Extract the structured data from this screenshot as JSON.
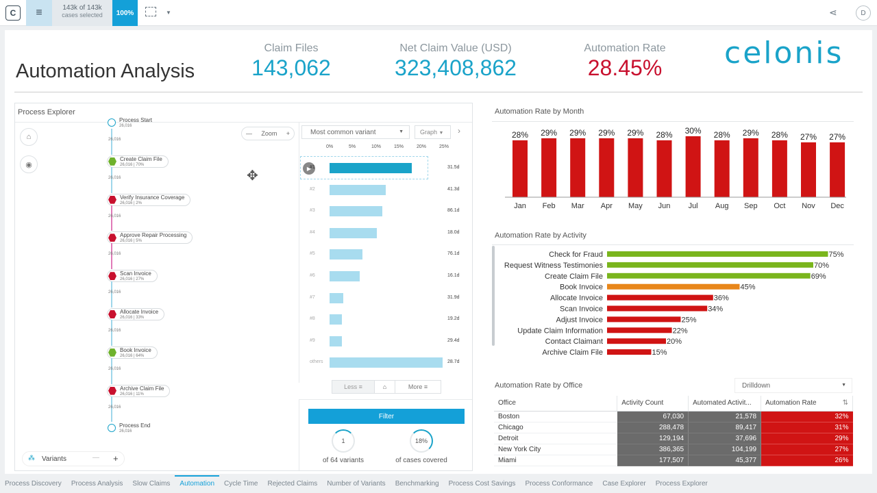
{
  "topbar": {
    "cases_count": "143k of 143k",
    "cases_label": "cases selected",
    "percent": "100%",
    "logo_letter": "C",
    "user_initial": "D"
  },
  "page_title": "Automation Analysis",
  "kpis": {
    "claim_files": {
      "label": "Claim Files",
      "value": "143,062",
      "color": "#1aa3c9"
    },
    "net_value": {
      "label": "Net Claim Value (USD)",
      "value": "323,408,862",
      "color": "#1aa3c9"
    },
    "auto_rate": {
      "label": "Automation Rate",
      "value": "28.45%",
      "color": "#c8102e"
    }
  },
  "brand": "celonis",
  "process_explorer": {
    "title": "Process Explorer",
    "zoom_label": "Zoom",
    "nodes": [
      {
        "name": "Process Start",
        "stats": "26,016",
        "type": "start"
      },
      {
        "name": "Create Claim File",
        "stats": "26,016 | 70%",
        "type": "green"
      },
      {
        "name": "Verify Insurance Coverage",
        "stats": "26,016 | 2%",
        "type": "red"
      },
      {
        "name": "Approve Repair Processing",
        "stats": "26,016 | 5%",
        "type": "red"
      },
      {
        "name": "Scan Invoice",
        "stats": "26,016 | 27%",
        "type": "red"
      },
      {
        "name": "Allocate Invoice",
        "stats": "26,016 | 33%",
        "type": "red"
      },
      {
        "name": "Book Invoice",
        "stats": "26,016 | 64%",
        "type": "green"
      },
      {
        "name": "Archive Claim File",
        "stats": "26,016 | 11%",
        "type": "red"
      },
      {
        "name": "Process End",
        "stats": "26,016",
        "type": "end"
      }
    ],
    "edge_counts": [
      "26,016",
      "26,016",
      "26,016",
      "26,016",
      "26,016",
      "26,016",
      "26,016",
      "26,016"
    ],
    "variants_label": "Variants",
    "variant_select": "Most common variant",
    "graph_select": "Graph",
    "ticks": [
      "0%",
      "5%",
      "10%",
      "15%",
      "20%",
      "25%"
    ],
    "variants": [
      {
        "label": "#1",
        "share": 18.2,
        "duration": "31.5d"
      },
      {
        "label": "#2",
        "share": 12.4,
        "duration": "41.3d"
      },
      {
        "label": "#3",
        "share": 11.6,
        "duration": "86.1d"
      },
      {
        "label": "#4",
        "share": 10.5,
        "duration": "18.0d"
      },
      {
        "label": "#5",
        "share": 7.3,
        "duration": "76.1d"
      },
      {
        "label": "#6",
        "share": 6.6,
        "duration": "16.1d"
      },
      {
        "label": "#7",
        "share": 3.1,
        "duration": "31.9d"
      },
      {
        "label": "#8",
        "share": 2.8,
        "duration": "19.2d"
      },
      {
        "label": "#9",
        "share": 2.8,
        "duration": "29.4d"
      },
      {
        "label": "others",
        "share": 25.0,
        "duration": "28.7d"
      }
    ],
    "less_label": "Less",
    "more_label": "More",
    "filter_label": "Filter",
    "variants_ring": {
      "value": "1",
      "caption": "of 64 variants"
    },
    "cases_ring": {
      "value": "18%",
      "caption": "of cases covered"
    }
  },
  "month_chart": {
    "title": "Automation Rate by Month",
    "color": "#d01414",
    "months": [
      "Jan",
      "Feb",
      "Mar",
      "Apr",
      "May",
      "Jun",
      "Jul",
      "Aug",
      "Sep",
      "Oct",
      "Nov",
      "Dec"
    ],
    "values": [
      28,
      29,
      29,
      29,
      29,
      28,
      30,
      28,
      29,
      28,
      27,
      27
    ]
  },
  "activity_chart": {
    "title": "Automation Rate by Activity",
    "items": [
      {
        "name": "Check for Fraud",
        "value": 75,
        "color": "#7ab51d"
      },
      {
        "name": "Request Witness Testimonies",
        "value": 70,
        "color": "#7ab51d"
      },
      {
        "name": "Create Claim File",
        "value": 69,
        "color": "#7ab51d"
      },
      {
        "name": "Book Invoice",
        "value": 45,
        "color": "#e8861a"
      },
      {
        "name": "Allocate Invoice",
        "value": 36,
        "color": "#d01414"
      },
      {
        "name": "Scan Invoice",
        "value": 34,
        "color": "#d01414"
      },
      {
        "name": "Adjust Invoice",
        "value": 25,
        "color": "#d01414"
      },
      {
        "name": "Update Claim Information",
        "value": 22,
        "color": "#d01414"
      },
      {
        "name": "Contact Claimant",
        "value": 20,
        "color": "#d01414"
      },
      {
        "name": "Archive Claim File",
        "value": 15,
        "color": "#d01414"
      }
    ]
  },
  "office_table": {
    "title": "Automation Rate by Office",
    "drilldown": "Drilldown",
    "headers": [
      "Office",
      "Activity Count",
      "Automated Activit...",
      "Automation Rate"
    ],
    "rows": [
      [
        "Boston",
        "67,030",
        "21,578",
        "32%"
      ],
      [
        "Chicago",
        "288,478",
        "89,417",
        "31%"
      ],
      [
        "Detroit",
        "129,194",
        "37,696",
        "29%"
      ],
      [
        "New York City",
        "386,365",
        "104,199",
        "27%"
      ],
      [
        "Miami",
        "177,507",
        "45,377",
        "26%"
      ]
    ]
  },
  "tabs": [
    {
      "label": "Process Discovery",
      "active": false
    },
    {
      "label": "Process Analysis",
      "active": false
    },
    {
      "label": "Slow Claims",
      "active": false
    },
    {
      "label": "Automation",
      "active": true
    },
    {
      "label": "Cycle Time",
      "active": false
    },
    {
      "label": "Rejected Claims",
      "active": false
    },
    {
      "label": "Number of Variants",
      "active": false
    },
    {
      "label": "Benchmarking",
      "active": false
    },
    {
      "label": "Process Cost Savings",
      "active": false
    },
    {
      "label": "Process Conformance",
      "active": false
    },
    {
      "label": "Case Explorer",
      "active": false
    },
    {
      "label": "Process Explorer",
      "active": false
    }
  ]
}
